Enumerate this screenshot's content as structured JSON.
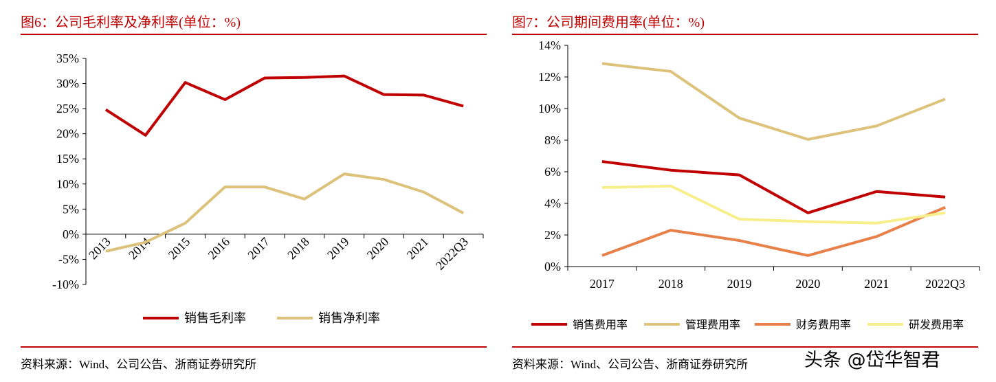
{
  "watermark": "头条 @岱华智君",
  "chart_data": [
    {
      "type": "line",
      "title": "图6：公司毛利率及净利率(单位：%)",
      "source": "资料来源：Wind、公司公告、浙商证券研究所",
      "categories": [
        "2013",
        "2014",
        "2015",
        "2016",
        "2017",
        "2018",
        "2019",
        "2020",
        "2021",
        "2022Q3"
      ],
      "ylim": [
        -10,
        35
      ],
      "yticks": [
        "-10%",
        "-5%",
        "0%",
        "5%",
        "10%",
        "15%",
        "20%",
        "25%",
        "30%",
        "35%"
      ],
      "legend_position": "bottom",
      "grid": false,
      "series": [
        {
          "name": "销售毛利率",
          "color": "#C00000",
          "values": [
            24.8,
            19.7,
            30.2,
            26.8,
            31.1,
            31.2,
            31.5,
            27.8,
            27.7,
            25.5
          ]
        },
        {
          "name": "销售净利率",
          "color": "#DCC27B",
          "values": [
            -3.4,
            -1.6,
            2.2,
            9.4,
            9.4,
            7.0,
            12.0,
            10.9,
            8.4,
            4.2
          ]
        }
      ]
    },
    {
      "type": "line",
      "title": "图7：公司期间费用率(单位：%)",
      "source": "资料来源：Wind、公司公告、浙商证券研究所",
      "categories": [
        "2017",
        "2018",
        "2019",
        "2020",
        "2021",
        "2022Q3"
      ],
      "ylim": [
        0,
        14
      ],
      "yticks": [
        "0%",
        "2%",
        "4%",
        "6%",
        "8%",
        "10%",
        "12%",
        "14%"
      ],
      "legend_position": "bottom",
      "grid": false,
      "series": [
        {
          "name": "销售费用率",
          "color": "#C00000",
          "values": [
            6.65,
            6.1,
            5.8,
            3.4,
            4.75,
            4.4
          ]
        },
        {
          "name": "管理费用率",
          "color": "#DCC27B",
          "values": [
            12.85,
            12.35,
            9.4,
            8.05,
            8.9,
            10.6
          ]
        },
        {
          "name": "财务费用率",
          "color": "#E8804A",
          "values": [
            0.7,
            2.3,
            1.65,
            0.7,
            1.9,
            3.75
          ]
        },
        {
          "name": "研发费用率",
          "color": "#F7EE8C",
          "values": [
            5.0,
            5.1,
            3.0,
            2.85,
            2.75,
            3.4
          ]
        }
      ]
    }
  ]
}
